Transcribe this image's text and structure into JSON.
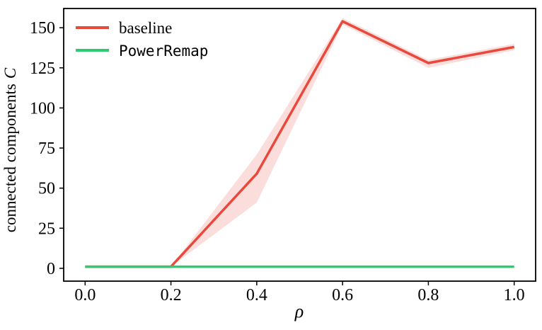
{
  "figure": {
    "background": "#ffffff",
    "axis_color": "#000000"
  },
  "chart_data": {
    "type": "line",
    "title": "",
    "xlabel": "ρ",
    "ylabel_text": "connected components",
    "ylabel_math": "C",
    "xlim": [
      -0.05,
      1.05
    ],
    "ylim": [
      -8,
      162
    ],
    "grid": false,
    "legend_position": "upper-left",
    "x_ticks": [
      0.0,
      0.2,
      0.4,
      0.6,
      0.8,
      1.0
    ],
    "x_tick_labels": [
      "0.0",
      "0.2",
      "0.4",
      "0.6",
      "0.8",
      "1.0"
    ],
    "y_ticks": [
      0,
      25,
      50,
      75,
      100,
      125,
      150
    ],
    "y_tick_labels": [
      "0",
      "25",
      "50",
      "75",
      "100",
      "125",
      "150"
    ],
    "x": [
      0.0,
      0.2,
      0.4,
      0.6,
      0.8,
      1.0
    ],
    "series": [
      {
        "name": "baseline",
        "color": "#e8493c",
        "values": [
          1,
          1,
          59,
          154,
          128,
          138
        ],
        "band_upper": [
          1,
          1,
          71,
          156,
          130,
          140
        ],
        "band_lower": [
          1,
          1,
          41,
          152,
          125,
          136
        ],
        "band_opacity": 0.18
      },
      {
        "name": "PowerRemap",
        "color": "#2ecc71",
        "values": [
          1,
          1,
          1,
          1,
          1,
          1
        ]
      }
    ]
  }
}
